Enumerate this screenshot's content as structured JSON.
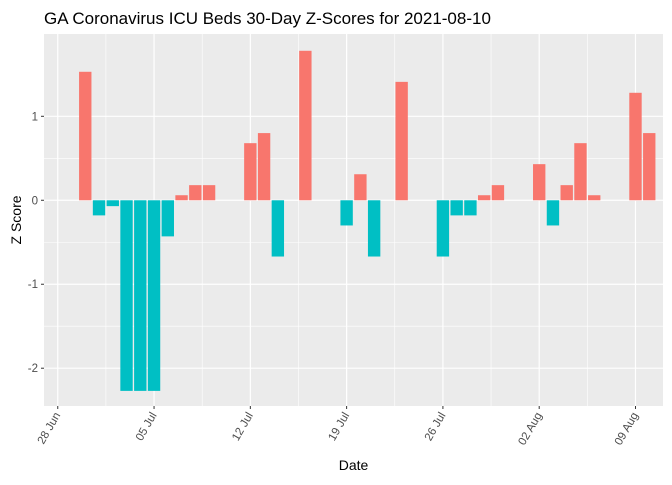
{
  "chart_data": {
    "type": "bar",
    "title": "GA Coronavirus ICU Beds 30-Day Z-Scores for 2021-08-10",
    "xlabel": "Date",
    "ylabel": "Z Score",
    "ylim": [
      -2.45,
      1.98
    ],
    "y_ticks": [
      -2,
      -1,
      0,
      1
    ],
    "x_ticks": [
      {
        "date": "2021-06-28",
        "label": "28 Jun"
      },
      {
        "date": "2021-07-05",
        "label": "05 Jul"
      },
      {
        "date": "2021-07-12",
        "label": "12 Jul"
      },
      {
        "date": "2021-07-19",
        "label": "19 Jul"
      },
      {
        "date": "2021-07-26",
        "label": "26 Jul"
      },
      {
        "date": "2021-08-02",
        "label": "02 Aug"
      },
      {
        "date": "2021-08-09",
        "label": "09 Aug"
      }
    ],
    "xlim": [
      "2021-06-27",
      "2021-08-11"
    ],
    "grid": true,
    "legend": "none",
    "colors": {
      "positive": "#F8766D",
      "negative": "#00BFC4",
      "panel": "#EBEBEB",
      "grid": "#FFFFFF"
    },
    "data": [
      {
        "date": "2021-06-30",
        "value": 1.53
      },
      {
        "date": "2021-07-01",
        "value": -0.18
      },
      {
        "date": "2021-07-02",
        "value": -0.07
      },
      {
        "date": "2021-07-03",
        "value": -2.27
      },
      {
        "date": "2021-07-04",
        "value": -2.27
      },
      {
        "date": "2021-07-05",
        "value": -2.27
      },
      {
        "date": "2021-07-06",
        "value": -0.43
      },
      {
        "date": "2021-07-07",
        "value": 0.06
      },
      {
        "date": "2021-07-08",
        "value": 0.18
      },
      {
        "date": "2021-07-09",
        "value": 0.18
      },
      {
        "date": "2021-07-10",
        "value": 0.0
      },
      {
        "date": "2021-07-11",
        "value": 0.0
      },
      {
        "date": "2021-07-12",
        "value": 0.68
      },
      {
        "date": "2021-07-13",
        "value": 0.8
      },
      {
        "date": "2021-07-14",
        "value": -0.67
      },
      {
        "date": "2021-07-15",
        "value": 0.0
      },
      {
        "date": "2021-07-16",
        "value": 1.78
      },
      {
        "date": "2021-07-17",
        "value": 0.0
      },
      {
        "date": "2021-07-18",
        "value": 0.0
      },
      {
        "date": "2021-07-19",
        "value": -0.3
      },
      {
        "date": "2021-07-20",
        "value": 0.31
      },
      {
        "date": "2021-07-21",
        "value": -0.67
      },
      {
        "date": "2021-07-22",
        "value": 0.0
      },
      {
        "date": "2021-07-23",
        "value": 1.41
      },
      {
        "date": "2021-07-24",
        "value": 0.0
      },
      {
        "date": "2021-07-25",
        "value": 0.0
      },
      {
        "date": "2021-07-26",
        "value": -0.67
      },
      {
        "date": "2021-07-27",
        "value": -0.18
      },
      {
        "date": "2021-07-28",
        "value": -0.18
      },
      {
        "date": "2021-07-29",
        "value": 0.06
      },
      {
        "date": "2021-07-30",
        "value": 0.18
      },
      {
        "date": "2021-07-31",
        "value": 0.0
      },
      {
        "date": "2021-08-01",
        "value": 0.0
      },
      {
        "date": "2021-08-02",
        "value": 0.43
      },
      {
        "date": "2021-08-03",
        "value": -0.3
      },
      {
        "date": "2021-08-04",
        "value": 0.18
      },
      {
        "date": "2021-08-05",
        "value": 0.68
      },
      {
        "date": "2021-08-06",
        "value": 0.06
      },
      {
        "date": "2021-08-07",
        "value": 0.0
      },
      {
        "date": "2021-08-08",
        "value": 0.0
      },
      {
        "date": "2021-08-09",
        "value": 1.28
      },
      {
        "date": "2021-08-10",
        "value": 0.8
      }
    ]
  }
}
